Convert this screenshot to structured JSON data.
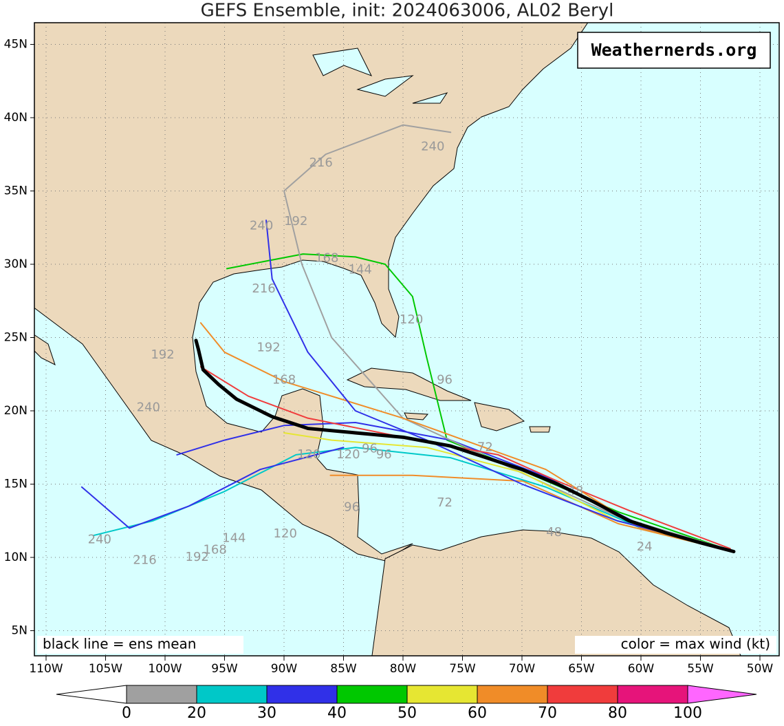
{
  "title": "GEFS Ensemble, init: 2024063006, AL02 Beryl",
  "watermark": "Weathernerds.org",
  "note_left": "black line = ens mean",
  "note_right": "color = max wind (kt)",
  "lon_ticks": [
    {
      "value": -110,
      "label": "110W"
    },
    {
      "value": -105,
      "label": "105W"
    },
    {
      "value": -100,
      "label": "100W"
    },
    {
      "value": -95,
      "label": "95W"
    },
    {
      "value": -90,
      "label": "90W"
    },
    {
      "value": -85,
      "label": "85W"
    },
    {
      "value": -80,
      "label": "80W"
    },
    {
      "value": -75,
      "label": "75W"
    },
    {
      "value": -70,
      "label": "70W"
    },
    {
      "value": -65,
      "label": "65W"
    },
    {
      "value": -60,
      "label": "60W"
    },
    {
      "value": -55,
      "label": "55W"
    },
    {
      "value": -50,
      "label": "50W"
    }
  ],
  "lat_ticks": [
    {
      "value": 45,
      "label": "45N"
    },
    {
      "value": 40,
      "label": "40N"
    },
    {
      "value": 35,
      "label": "35N"
    },
    {
      "value": 30,
      "label": "30N"
    },
    {
      "value": 25,
      "label": "25N"
    },
    {
      "value": 20,
      "label": "20N"
    },
    {
      "value": 15,
      "label": "15N"
    },
    {
      "value": 10,
      "label": "10N"
    },
    {
      "value": 5,
      "label": "5N"
    }
  ],
  "colorbar": {
    "ticks": [
      0,
      20,
      30,
      40,
      50,
      60,
      70,
      80,
      100
    ],
    "colors": [
      "#a0a0a0",
      "#00c8c8",
      "#3030e8",
      "#00c800",
      "#e6e632",
      "#f08c28",
      "#f03c3c",
      "#e6147a"
    ],
    "under_color": "#ffffff",
    "over_color": "#ff66ff"
  },
  "mean_track": {
    "color": "#000000",
    "lon": [
      -52.2,
      -55,
      -58,
      -61,
      -64,
      -67,
      -70,
      -73,
      -76,
      -80,
      -84,
      -88,
      -91,
      -94,
      -95.5,
      -96.8,
      -97.2,
      -97.4
    ],
    "lat": [
      10.4,
      11,
      11.7,
      12.5,
      13.8,
      15,
      16,
      16.8,
      17.6,
      18.2,
      18.5,
      18.8,
      19.6,
      20.8,
      21.8,
      22.8,
      24.2,
      24.8
    ]
  },
  "members": [
    {
      "color": "#f08c28",
      "lon": [
        -52.3,
        -61.9,
        -69.9,
        -79.2,
        -86.1
      ],
      "lat": [
        10.4,
        12.3,
        15.2,
        15.6,
        15.6
      ]
    },
    {
      "color": "#00c800",
      "lon": [
        -52.6,
        -61.9,
        -70.5,
        -76.3,
        -78.0,
        -79.2,
        -81.5,
        -84.0,
        -88.4,
        -94.8
      ],
      "lat": [
        10.5,
        13.1,
        16.1,
        18.0,
        23.6,
        27.8,
        30.0,
        30.5,
        30.7,
        29.7
      ]
    },
    {
      "color": "#3030e8",
      "lon": [
        -52.5,
        -60,
        -68,
        -76,
        -84,
        -90,
        -95,
        -99
      ],
      "lat": [
        10.5,
        12.2,
        15.5,
        18,
        19.2,
        19,
        18,
        17
      ]
    },
    {
      "color": "#00c8c8",
      "lon": [
        -52.5,
        -60,
        -68,
        -76,
        -84,
        -89,
        -95,
        -101,
        -106
      ],
      "lat": [
        10.5,
        12,
        14.8,
        16.8,
        17.5,
        17,
        14.5,
        12.5,
        11.5
      ]
    },
    {
      "color": "#a0a0a0",
      "lon": [
        -52.5,
        -62,
        -72,
        -80,
        -86,
        -88.5,
        -90,
        -86.5,
        -80,
        -76
      ],
      "lat": [
        10.5,
        12.8,
        16.5,
        19.5,
        25,
        30,
        35,
        37.5,
        39.5,
        39
      ]
    },
    {
      "color": "#e6e632",
      "lon": [
        -52.5,
        -62,
        -70,
        -78,
        -86,
        -90
      ],
      "lat": [
        10.5,
        12.5,
        15.8,
        17.5,
        18,
        18.5
      ]
    },
    {
      "color": "#f03c3c",
      "lon": [
        -52.5,
        -61,
        -67,
        -72,
        -80,
        -88,
        -93,
        -97
      ],
      "lat": [
        10.6,
        13.2,
        15.2,
        17,
        18.2,
        19.5,
        21,
        23
      ]
    },
    {
      "color": "#f08c28",
      "lon": [
        -52.5,
        -60,
        -68,
        -80,
        -90,
        -95,
        -97
      ],
      "lat": [
        10.5,
        12,
        16,
        19.5,
        22,
        24,
        26
      ]
    },
    {
      "color": "#3030e8",
      "lon": [
        -52.5,
        -62,
        -70,
        -78,
        -84,
        -88,
        -91,
        -91.5
      ],
      "lat": [
        10.5,
        12.5,
        15,
        18,
        20,
        24,
        29,
        33
      ]
    },
    {
      "color": "#3030e8",
      "lon": [
        -85,
        -92,
        -98,
        -103,
        -107
      ],
      "lat": [
        17.5,
        16,
        13.5,
        12,
        14.8
      ]
    }
  ],
  "hour_labels": [
    {
      "text": 240,
      "lon": -105.5,
      "lat": 11.2
    },
    {
      "text": 216,
      "lon": -101.7,
      "lat": 9.8
    },
    {
      "text": 192,
      "lon": -97.3,
      "lat": 10
    },
    {
      "text": 168,
      "lon": -95.8,
      "lat": 10.5
    },
    {
      "text": 144,
      "lon": -94.2,
      "lat": 11.3
    },
    {
      "text": 120,
      "lon": -89.9,
      "lat": 11.6
    },
    {
      "text": 96,
      "lon": -84.3,
      "lat": 13.4
    },
    {
      "text": 72,
      "lon": -76.5,
      "lat": 13.7
    },
    {
      "text": 48,
      "lon": -67.3,
      "lat": 11.7
    },
    {
      "text": 24,
      "lon": -59.7,
      "lat": 10.7
    },
    {
      "text": 240,
      "lon": -101.4,
      "lat": 20.2
    },
    {
      "text": 192,
      "lon": -100.2,
      "lat": 23.8
    },
    {
      "text": 168,
      "lon": -90,
      "lat": 22.1
    },
    {
      "text": 192,
      "lon": -91.3,
      "lat": 24.3
    },
    {
      "text": 216,
      "lon": -91.7,
      "lat": 28.3
    },
    {
      "text": 240,
      "lon": -91.9,
      "lat": 32.6
    },
    {
      "text": 192,
      "lon": -89,
      "lat": 32.9
    },
    {
      "text": 216,
      "lon": -86.9,
      "lat": 36.9
    },
    {
      "text": 240,
      "lon": -77.5,
      "lat": 38
    },
    {
      "text": 168,
      "lon": -86.4,
      "lat": 30.4
    },
    {
      "text": 144,
      "lon": -83.6,
      "lat": 29.6
    },
    {
      "text": 120,
      "lon": -79.3,
      "lat": 26.2
    },
    {
      "text": 96,
      "lon": -76.5,
      "lat": 22.1
    },
    {
      "text": 96,
      "lon": -82.8,
      "lat": 17.4
    },
    {
      "text": 96,
      "lon": -81.6,
      "lat": 17
    },
    {
      "text": 120,
      "lon": -84.6,
      "lat": 17
    },
    {
      "text": 120,
      "lon": -87.9,
      "lat": 17
    },
    {
      "text": 72,
      "lon": -73.1,
      "lat": 17.5
    },
    {
      "text": 48,
      "lon": -65.5,
      "lat": 14.5
    }
  ]
}
